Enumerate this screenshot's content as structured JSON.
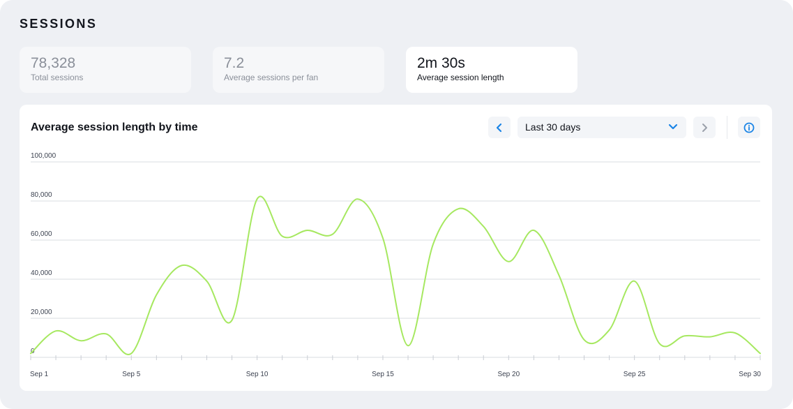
{
  "section": {
    "title": "SESSIONS"
  },
  "stats": [
    {
      "value": "78,328",
      "label": "Total sessions"
    },
    {
      "value": "7.2",
      "label": "Average sessions per fan"
    },
    {
      "value": "2m 30s",
      "label": "Average session length"
    }
  ],
  "chart_card": {
    "title": "Average session length by time",
    "range_select": {
      "value": "Last 30 days"
    },
    "icons": {
      "prev": "chevron-left-icon",
      "next": "chevron-right-icon",
      "dropdown": "chevron-down-icon",
      "info": "info-icon"
    }
  },
  "colors": {
    "line": "#a6e860",
    "accent": "#1a84e6",
    "grid": "#d9dce2"
  },
  "chart_data": {
    "type": "line",
    "title": "Average session length by time",
    "ylim": [
      0,
      100000
    ],
    "yticks": [
      "100,000",
      "80,000",
      "60,000",
      "40,000",
      "20,000",
      "0"
    ],
    "ytick_values": [
      100000,
      80000,
      60000,
      40000,
      20000,
      0
    ],
    "xtick_labels": [
      {
        "day": 1,
        "label": "Sep 1"
      },
      {
        "day": 5,
        "label": "Sep 5"
      },
      {
        "day": 10,
        "label": "Sep 10"
      },
      {
        "day": 15,
        "label": "Sep 15"
      },
      {
        "day": 20,
        "label": "Sep 20"
      },
      {
        "day": 25,
        "label": "Sep 25"
      },
      {
        "day": 30,
        "label": "Sep 30"
      }
    ],
    "series": [
      {
        "x": [
          "Sep 1",
          "Sep 2",
          "Sep 3",
          "Sep 4",
          "Sep 5",
          "Sep 6",
          "Sep 7",
          "Sep 8",
          "Sep 9",
          "Sep 10",
          "Sep 11",
          "Sep 12",
          "Sep 13",
          "Sep 14",
          "Sep 15",
          "Sep 16",
          "Sep 17",
          "Sep 18",
          "Sep 19",
          "Sep 20",
          "Sep 21",
          "Sep 22",
          "Sep 23",
          "Sep 24",
          "Sep 25",
          "Sep 26",
          "Sep 27",
          "Sep 28",
          "Sep 29",
          "Sep 30"
        ],
        "values": [
          2000,
          13500,
          8500,
          12000,
          2000,
          32000,
          47000,
          39000,
          19000,
          81000,
          62000,
          65000,
          63000,
          81000,
          61000,
          6000,
          58000,
          76000,
          67000,
          49000,
          65000,
          42000,
          9000,
          14000,
          39000,
          7000,
          11000,
          10500,
          12500,
          2000
        ]
      }
    ],
    "grid": true
  }
}
